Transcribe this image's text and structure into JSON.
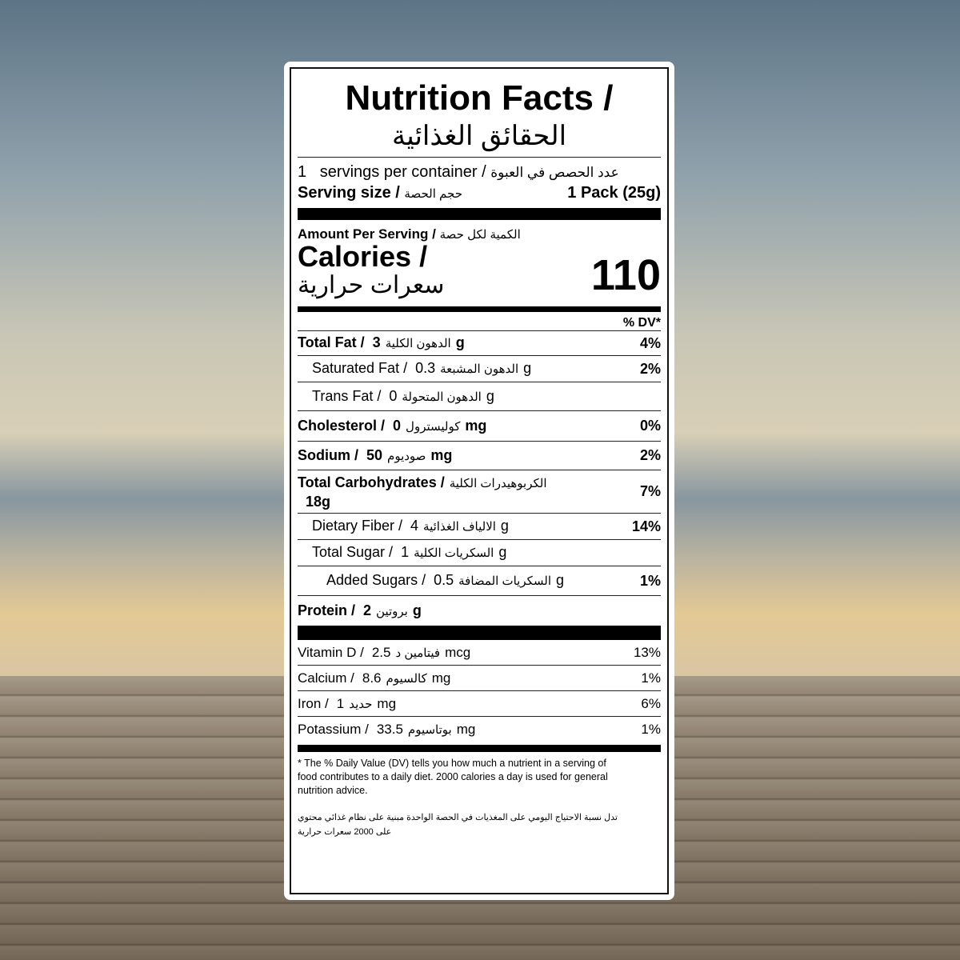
{
  "title": "Nutrition Facts /",
  "title_ar": "الحقائق الغذائية",
  "servings_count": "1",
  "servings_label": "servings per container /",
  "servings_ar": "عدد الحصص في العبوة",
  "serving_size_label": "Serving size /",
  "serving_size_ar": "حجم الحصة",
  "serving_size_value": "1 Pack (25g)",
  "amount_per_serving": "Amount Per Serving /",
  "amount_per_serving_ar": "الكمية لكل حصة",
  "calories_label": "Calories /",
  "calories_ar": "سعرات حرارية",
  "calories_value": "110",
  "dv_header": "% DV*",
  "nutrients": [
    {
      "label": "Total Fat /",
      "ar": "الدهون الكلية",
      "amount": "3g",
      "dv": "4%",
      "bold": true,
      "indent": 0
    },
    {
      "label": "Saturated Fat /",
      "ar": "الدهون المشبعة",
      "amount": "0.3g",
      "dv": "2%",
      "bold": false,
      "indent": 1
    },
    {
      "label": "Trans Fat /",
      "ar": "الدهون المتحولة",
      "amount": "0g",
      "dv": "",
      "bold": false,
      "indent": 1
    },
    {
      "label": "Cholesterol /",
      "ar": "كوليسترول",
      "amount": "0mg",
      "dv": "0%",
      "bold": true,
      "indent": 0
    },
    {
      "label": "Sodium /",
      "ar": "صوديوم",
      "amount": "50mg",
      "dv": "2%",
      "bold": true,
      "indent": 0
    },
    {
      "label": "Total Carbohydrates /",
      "ar": "الكربوهيدرات الكلية",
      "amount": "18g",
      "dv": "7%",
      "bold": true,
      "indent": 0
    },
    {
      "label": "Dietary Fiber /",
      "ar": "الالياف الغذائية",
      "amount": "4g",
      "dv": "14%",
      "bold": false,
      "indent": 1
    },
    {
      "label": "Total Sugar /",
      "ar": "السكريات الكلية",
      "amount": "1g",
      "dv": "",
      "bold": false,
      "indent": 1
    },
    {
      "label": "Added Sugars /",
      "ar": "السكريات المضافة",
      "amount": "0.5g",
      "dv": "1%",
      "bold": false,
      "indent": 2
    },
    {
      "label": "Protein /",
      "ar": "بروتين",
      "amount": "2g",
      "dv": "",
      "bold": true,
      "indent": 0
    }
  ],
  "vitamins": [
    {
      "label": "Vitamin D /",
      "ar": "فيتامين د",
      "amount": "2.5mcg",
      "dv": "13%"
    },
    {
      "label": "Calcium /",
      "ar": "كالسيوم",
      "amount": "8.6mg",
      "dv": "1%"
    },
    {
      "label": "Iron /",
      "ar": "حديد",
      "amount": "1mg",
      "dv": "6%"
    },
    {
      "label": "Potassium /",
      "ar": "بوتاسيوم",
      "amount": "33.5mg",
      "dv": "1%"
    }
  ],
  "footnote": "* The % Daily Value (DV) tells you how much a nutrient in a serving of food contributes to a daily diet. 2000 calories a day is used for general nutrition advice.",
  "footnote_ar": "تدل نسبة الاحتياج اليومي على المغذيات في الحصة الواحدة مبنية على نظام غذائي محتوي على 2000 سعرات حرارية"
}
